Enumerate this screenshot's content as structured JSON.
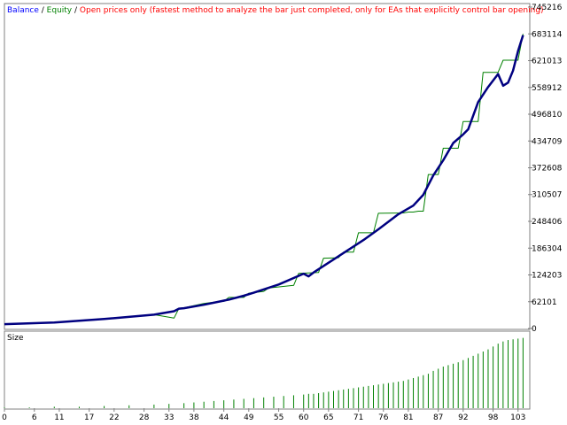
{
  "legend": {
    "balance_label": "Balance",
    "sep1": " / ",
    "equity_label": "Equity",
    "sep2": " / ",
    "mode_text": "Open prices only (fastest method to analyze the bar just completed, only for EAs that explicitly control bar opening)"
  },
  "size_panel": {
    "label": "Size"
  },
  "colors": {
    "balance": "#0000ff",
    "equity": "#008000",
    "mode_text": "#ff0000",
    "size_bars": "#008000",
    "curve": "#000080",
    "frame": "#808080"
  },
  "chart_data": [
    {
      "type": "line",
      "title": "",
      "xlabel": "",
      "ylabel": "",
      "grid": false,
      "legend_position": "top-left",
      "xlim": [
        0,
        105
      ],
      "ylim": [
        0,
        745216
      ],
      "y_ticks": [
        "0",
        "62101",
        "124203",
        "186304",
        "248406",
        "310507",
        "372608",
        "434709",
        "496810",
        "558912",
        "621013",
        "683114",
        "745216"
      ],
      "x_ticks": [
        "0",
        "6",
        "11",
        "17",
        "22",
        "28",
        "33",
        "38",
        "44",
        "49",
        "55",
        "60",
        "65",
        "71",
        "76",
        "81",
        "87",
        "92",
        "98",
        "103"
      ],
      "series": [
        {
          "name": "Balance",
          "color": "#000080",
          "x": [
            0,
            10,
            20,
            30,
            34,
            35,
            36,
            40,
            45,
            48,
            50,
            55,
            60,
            61,
            62,
            66,
            70,
            72,
            75,
            79,
            82,
            84,
            86,
            88,
            90,
            92,
            93,
            95,
            97,
            99,
            100,
            101,
            102,
            103,
            104
          ],
          "y": [
            10000,
            14000,
            22000,
            32000,
            40000,
            46000,
            47000,
            55000,
            67000,
            76000,
            83000,
            102000,
            127000,
            121000,
            130000,
            160000,
            190000,
            205000,
            230000,
            265000,
            285000,
            310000,
            355000,
            390000,
            430000,
            450000,
            462000,
            525000,
            560000,
            590000,
            563000,
            570000,
            598000,
            643000,
            680000
          ]
        },
        {
          "name": "Equity",
          "color": "#008000",
          "x": [
            0,
            10,
            20,
            30,
            33,
            34,
            35,
            36,
            40,
            42,
            44,
            45,
            48,
            49,
            52,
            53,
            58,
            59,
            63,
            64,
            67,
            68,
            70,
            71,
            74,
            75,
            80,
            81,
            82,
            83,
            84,
            85,
            87,
            88,
            91,
            92,
            95,
            96,
            99,
            100,
            103,
            104
          ],
          "y": [
            10000,
            14000,
            22000,
            32000,
            26000,
            24000,
            47000,
            48000,
            58000,
            61000,
            63000,
            72000,
            72000,
            82000,
            86000,
            94000,
            100000,
            128000,
            130000,
            163000,
            164000,
            177000,
            177000,
            222000,
            222000,
            267000,
            268000,
            270000,
            270000,
            272000,
            272000,
            357000,
            357000,
            418000,
            418000,
            480000,
            480000,
            594000,
            594000,
            622000,
            622000,
            683000
          ]
        }
      ]
    },
    {
      "type": "bar",
      "title": "Size",
      "ylim": [
        0,
        1
      ],
      "description_values": "relative lot size per trade index",
      "x": [
        0,
        5,
        10,
        15,
        20,
        25,
        30,
        33,
        36,
        38,
        40,
        42,
        44,
        46,
        48,
        50,
        52,
        54,
        56,
        58,
        60,
        61,
        62,
        63,
        64,
        65,
        66,
        67,
        68,
        69,
        70,
        71,
        72,
        73,
        74,
        75,
        76,
        77,
        78,
        79,
        80,
        81,
        82,
        83,
        84,
        85,
        86,
        87,
        88,
        89,
        90,
        91,
        92,
        93,
        94,
        95,
        96,
        97,
        98,
        99,
        100,
        101,
        102,
        103,
        104
      ],
      "values": [
        0.01,
        0.01,
        0.02,
        0.02,
        0.03,
        0.04,
        0.05,
        0.06,
        0.07,
        0.08,
        0.09,
        0.1,
        0.11,
        0.12,
        0.13,
        0.14,
        0.15,
        0.16,
        0.17,
        0.18,
        0.19,
        0.2,
        0.2,
        0.21,
        0.22,
        0.23,
        0.24,
        0.25,
        0.26,
        0.27,
        0.28,
        0.29,
        0.3,
        0.31,
        0.32,
        0.33,
        0.34,
        0.35,
        0.36,
        0.37,
        0.38,
        0.4,
        0.42,
        0.44,
        0.46,
        0.48,
        0.52,
        0.55,
        0.58,
        0.6,
        0.62,
        0.64,
        0.67,
        0.7,
        0.73,
        0.76,
        0.79,
        0.82,
        0.86,
        0.9,
        0.93,
        0.95,
        0.96,
        0.97,
        0.98
      ]
    }
  ]
}
